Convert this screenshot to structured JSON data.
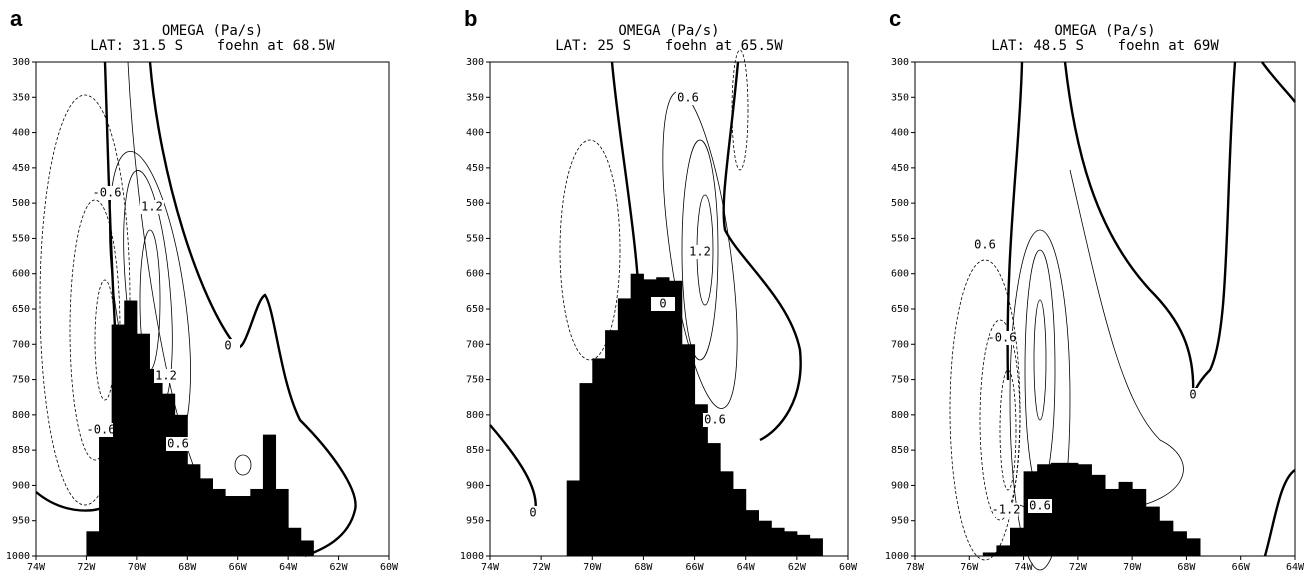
{
  "chart_data": [
    {
      "type": "contour",
      "label": "a",
      "title": "OMEGA (Pa/s)",
      "subtitle": "LAT: 31.5 S    foehn at 68.5W",
      "xlim": [
        -74,
        -60
      ],
      "xticks": [
        {
          "value": -74,
          "label": "74W"
        },
        {
          "value": -72,
          "label": "72W"
        },
        {
          "value": -70,
          "label": "70W"
        },
        {
          "value": -68,
          "label": "68W"
        },
        {
          "value": -66,
          "label": "66W"
        },
        {
          "value": -64,
          "label": "64W"
        },
        {
          "value": -62,
          "label": "62W"
        },
        {
          "value": -60,
          "label": "60W"
        }
      ],
      "ylim": [
        1000,
        300
      ],
      "yticks": [
        300,
        350,
        400,
        450,
        500,
        550,
        600,
        650,
        700,
        750,
        800,
        850,
        900,
        950,
        1000
      ],
      "terrain": {
        "x": [
          -71.75,
          -71.25,
          -70.75,
          -70.25,
          -69.75,
          -69.25,
          -68.75,
          -68.25,
          -67.75,
          -67.25,
          -66.75,
          -66.25,
          -65.75,
          -65.25,
          -64.75,
          -64.25,
          -63.75,
          -63.25
        ],
        "values": [
          965,
          820,
          672,
          638,
          685,
          735,
          770,
          800,
          870,
          890,
          905,
          915,
          915,
          905,
          828,
          905,
          960,
          978
        ]
      },
      "contour_labels": [
        -0.6,
        1.2,
        0,
        1.2,
        -0.6,
        0.6
      ]
    },
    {
      "type": "contour",
      "label": "b",
      "title": "OMEGA (Pa/s)",
      "subtitle": "LAT: 25 S    foehn at 65.5W",
      "xlim": [
        -74,
        -60
      ],
      "xticks": [
        {
          "value": -74,
          "label": "74W"
        },
        {
          "value": -72,
          "label": "72W"
        },
        {
          "value": -70,
          "label": "70W"
        },
        {
          "value": -68,
          "label": "68W"
        },
        {
          "value": -66,
          "label": "66W"
        },
        {
          "value": -64,
          "label": "64W"
        },
        {
          "value": -62,
          "label": "62W"
        },
        {
          "value": -60,
          "label": "60W"
        }
      ],
      "ylim": [
        1000,
        300
      ],
      "yticks": [
        300,
        350,
        400,
        450,
        500,
        550,
        600,
        650,
        700,
        750,
        800,
        850,
        900,
        950,
        1000
      ],
      "terrain": {
        "x": [
          -70.75,
          -70.25,
          -69.75,
          -69.25,
          -68.75,
          -68.25,
          -67.75,
          -67.25,
          -66.75,
          -66.25,
          -65.75,
          -65.25,
          -64.75,
          -64.25,
          -63.75,
          -63.25,
          -62.75,
          -62.25,
          -61.75,
          -61.25
        ],
        "values": [
          893,
          755,
          720,
          680,
          635,
          600,
          608,
          605,
          610,
          700,
          785,
          840,
          880,
          905,
          935,
          950,
          960,
          965,
          970,
          975
        ]
      },
      "contour_labels": [
        0.6,
        1.2,
        0,
        0.6,
        0
      ]
    },
    {
      "type": "contour",
      "label": "c",
      "title": "OMEGA (Pa/s)",
      "subtitle": "LAT: 48.5 S    foehn at 69W",
      "xlim": [
        -78,
        -64
      ],
      "xticks": [
        {
          "value": -78,
          "label": "78W"
        },
        {
          "value": -76,
          "label": "76W"
        },
        {
          "value": -74,
          "label": "74W"
        },
        {
          "value": -72,
          "label": "72W"
        },
        {
          "value": -70,
          "label": "70W"
        },
        {
          "value": -68,
          "label": "68W"
        },
        {
          "value": -66,
          "label": "66W"
        },
        {
          "value": -64,
          "label": "64W"
        }
      ],
      "ylim": [
        1000,
        300
      ],
      "yticks": [
        300,
        350,
        400,
        450,
        500,
        550,
        600,
        650,
        700,
        750,
        800,
        850,
        900,
        950,
        1000
      ],
      "terrain": {
        "x": [
          -75.25,
          -74.75,
          -74.25,
          -73.75,
          -73.25,
          -72.75,
          -72.25,
          -71.75,
          -71.25,
          -70.75,
          -70.25,
          -69.75,
          -69.25,
          -68.75,
          -68.25,
          -67.75
        ],
        "values": [
          995,
          985,
          960,
          880,
          870,
          868,
          868,
          870,
          885,
          905,
          895,
          905,
          930,
          950,
          965,
          975
        ]
      },
      "contour_labels": [
        0.6,
        -0.6,
        0,
        -1.2,
        0.6
      ]
    }
  ]
}
